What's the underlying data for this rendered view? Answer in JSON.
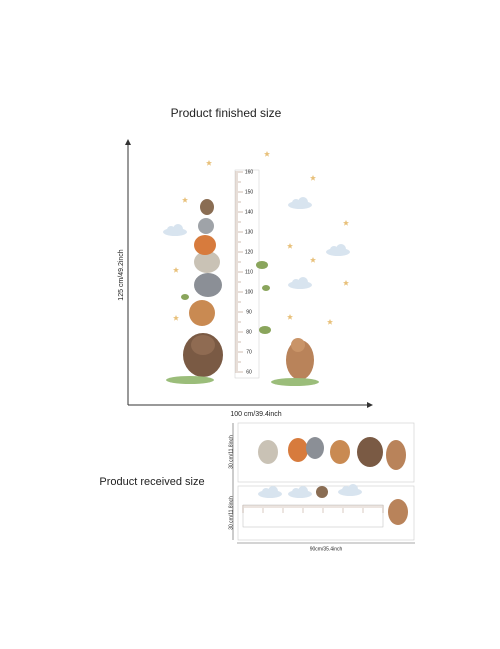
{
  "header": {
    "title": "Product finished size"
  },
  "finished": {
    "height_label": "125 cm/49.2inch",
    "width_label": "100 cm/39.4inch",
    "ruler": [
      160,
      150,
      140,
      130,
      120,
      110,
      100,
      90,
      80,
      70,
      60
    ]
  },
  "received": {
    "title": "Product received size",
    "sheet_heights": [
      "30 cm/11.8inch",
      "30 cm/11.8inch"
    ],
    "width_label": "90cm/35.4inch"
  }
}
